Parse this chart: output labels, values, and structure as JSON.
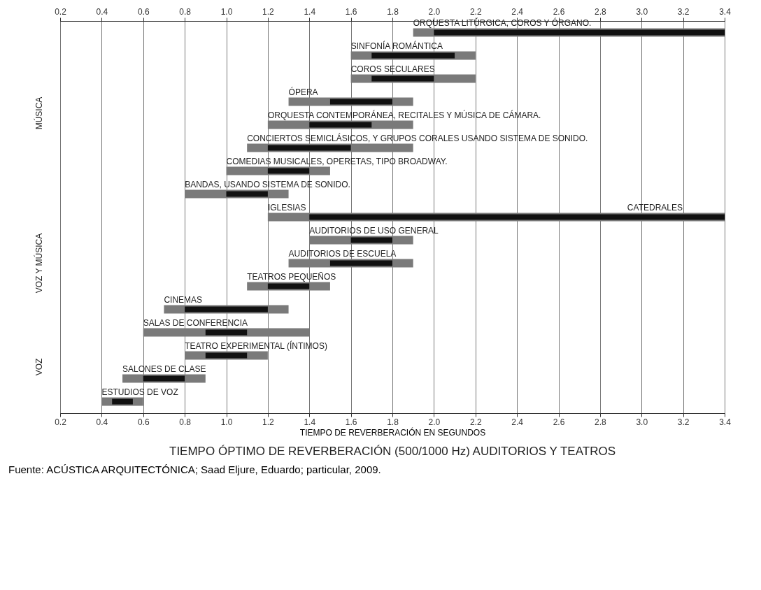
{
  "chart_data": {
    "type": "bar",
    "orientation": "horizontal",
    "title": "TIEMPO ÓPTIMO DE REVERBERACIÓN (500/1000 Hz) AUDITORIOS Y TEATROS",
    "xlabel": "TIEMPO DE REVERBERACIÓN EN SEGUNDOS",
    "categories": [
      "ORQUESTA LITÚRGICA, COROS Y ÓRGANO.",
      "SINFONÍA ROMÁNTICA",
      "COROS SECULARES",
      "ÓPERA",
      "ORQUESTA CONTEMPORÁNEA, RECITALES Y MÚSICA DE CÁMARA.",
      "CONCIERTOS SEMICLÁSICOS, Y GRUPOS CORALES USANDO SISTEMA DE SONIDO.",
      "COMEDIAS MUSICALES, OPERETAS, TIPO BROADWAY.",
      "BANDAS, USANDO SISTEMA DE SONIDO.",
      "IGLESIAS",
      "AUDITORIOS DE USO GENERAL",
      "AUDITORIOS DE ESCUELA",
      "TEATROS PEQUEÑOS",
      "CINEMAS",
      "SALAS DE CONFERENCIA",
      "TEATRO EXPERIMENTAL (ÍNTIMOS)",
      "SALONES DE CLASE",
      "ESTUDIOS DE VOZ"
    ],
    "series": [
      {
        "color": "#7a7a7a",
        "base": [
          1.9,
          1.6,
          1.6,
          1.3,
          1.2,
          1.1,
          1.0,
          0.8,
          1.2,
          1.4,
          1.3,
          1.1,
          0.7,
          0.6,
          0.8,
          0.5,
          0.4
        ],
        "values": [
          1.5,
          0.6,
          0.6,
          0.6,
          0.7,
          0.8,
          0.5,
          0.5,
          2.2,
          0.5,
          0.6,
          0.4,
          0.6,
          0.8,
          0.4,
          0.4,
          0.2
        ]
      },
      {
        "color": "#111111",
        "base": [
          2.0,
          1.7,
          1.7,
          1.5,
          1.4,
          1.2,
          1.2,
          1.0,
          1.4,
          1.6,
          1.5,
          1.2,
          0.8,
          0.9,
          0.9,
          0.6,
          0.45
        ],
        "values": [
          1.4,
          0.4,
          0.3,
          0.3,
          0.3,
          0.4,
          0.2,
          0.2,
          2.0,
          0.2,
          0.3,
          0.2,
          0.4,
          0.2,
          0.2,
          0.2,
          0.1
        ]
      }
    ],
    "xlim": [
      0.2,
      3.4
    ],
    "xticks": [
      0.2,
      0.4,
      0.6,
      0.8,
      {
        "value": 1,
        "label": "1.0"
      },
      1.2,
      1.4,
      1.6,
      1.8,
      {
        "value": 2,
        "label": "2.0"
      },
      2.2,
      2.4,
      2.6,
      2.8,
      {
        "value": 3,
        "label": "3.0"
      },
      3.2,
      3.4
    ],
    "x2lim": [
      0.2,
      3.4
    ],
    "x2ticks": [
      0.2,
      0.4,
      0.6,
      0.8,
      {
        "value": 1,
        "label": "1.0"
      },
      1.2,
      1.4,
      1.6,
      1.8,
      {
        "value": 2,
        "label": "2.0"
      },
      2.2,
      2.4,
      2.6,
      2.8,
      {
        "value": 3,
        "label": "3.0"
      },
      3.2,
      3.4
    ],
    "grid": "x",
    "annotations": [
      "CATEDRALES",
      "MÚSICA",
      "VOZ Y MÚSICA",
      "VOZ",
      "Fuente: ACÚSTICA ARQUITECTÓNICA; Saad Eljure, Eduardo; particular, 2009."
    ]
  }
}
